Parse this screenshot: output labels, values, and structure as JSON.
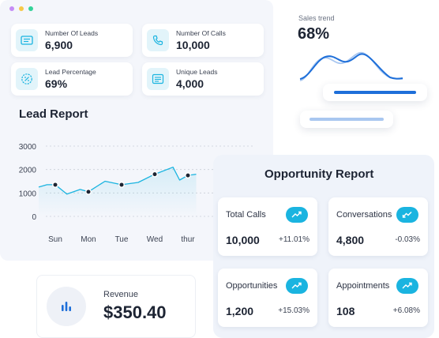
{
  "window": {
    "dot_colors": [
      "#c58cf6",
      "#f7c948",
      "#34d399"
    ]
  },
  "stats": [
    {
      "label": "Number Of Leads",
      "value": "6,900",
      "icon": "id-card-icon"
    },
    {
      "label": "Number Of Calls",
      "value": "10,000",
      "icon": "phone-icon"
    },
    {
      "label": "Lead Percentage",
      "value": "69%",
      "icon": "percent-badge-icon"
    },
    {
      "label": "Unique Leads",
      "value": "4,000",
      "icon": "list-icon"
    }
  ],
  "lead_report": {
    "title": "Lead Report"
  },
  "chart_data": {
    "type": "line",
    "categories": [
      "Sun",
      "Mon",
      "Tue",
      "Wed",
      "thur"
    ],
    "y_ticks": [
      "3000",
      "2000",
      "1000",
      "0"
    ],
    "ylim": [
      0,
      3000
    ],
    "x": [
      -0.5,
      -0.25,
      0,
      0.35,
      0.75,
      1,
      1.5,
      2,
      2.5,
      3,
      3.55,
      3.75,
      4,
      4.25
    ],
    "values": [
      1250,
      1350,
      1350,
      950,
      1150,
      1050,
      1500,
      1350,
      1450,
      1800,
      2100,
      1550,
      1750,
      1800
    ],
    "markers": [
      {
        "x": 0,
        "y": 1350
      },
      {
        "x": 1,
        "y": 1050
      },
      {
        "x": 2,
        "y": 1350
      },
      {
        "x": 3,
        "y": 1800
      },
      {
        "x": 4,
        "y": 1750
      }
    ],
    "grid": true,
    "line_color": "#1ab4e0"
  },
  "opportunity": {
    "title": "Opportunity Report",
    "cards": [
      {
        "label": "Total Calls",
        "value": "10,000",
        "change": "+11.01%",
        "icon": "trend-up-icon"
      },
      {
        "label": "Conversations",
        "value": "4,800",
        "change": "-0.03%",
        "icon": "trend-down-icon"
      },
      {
        "label": "Opportunities",
        "value": "1,200",
        "change": "+15.03%",
        "icon": "trend-up-icon"
      },
      {
        "label": "Appointments",
        "value": "108",
        "change": "+6.08%",
        "icon": "trend-up-icon"
      }
    ]
  },
  "revenue": {
    "label": "Revenue",
    "value": "$350.40",
    "icon": "bar-chart-icon"
  },
  "sales_trend": {
    "label": "Sales trend",
    "value": "68%"
  },
  "colors": {
    "accent": "#1ab4e0",
    "blue": "#1e6fd9",
    "light_blue": "#a9c7f0"
  }
}
